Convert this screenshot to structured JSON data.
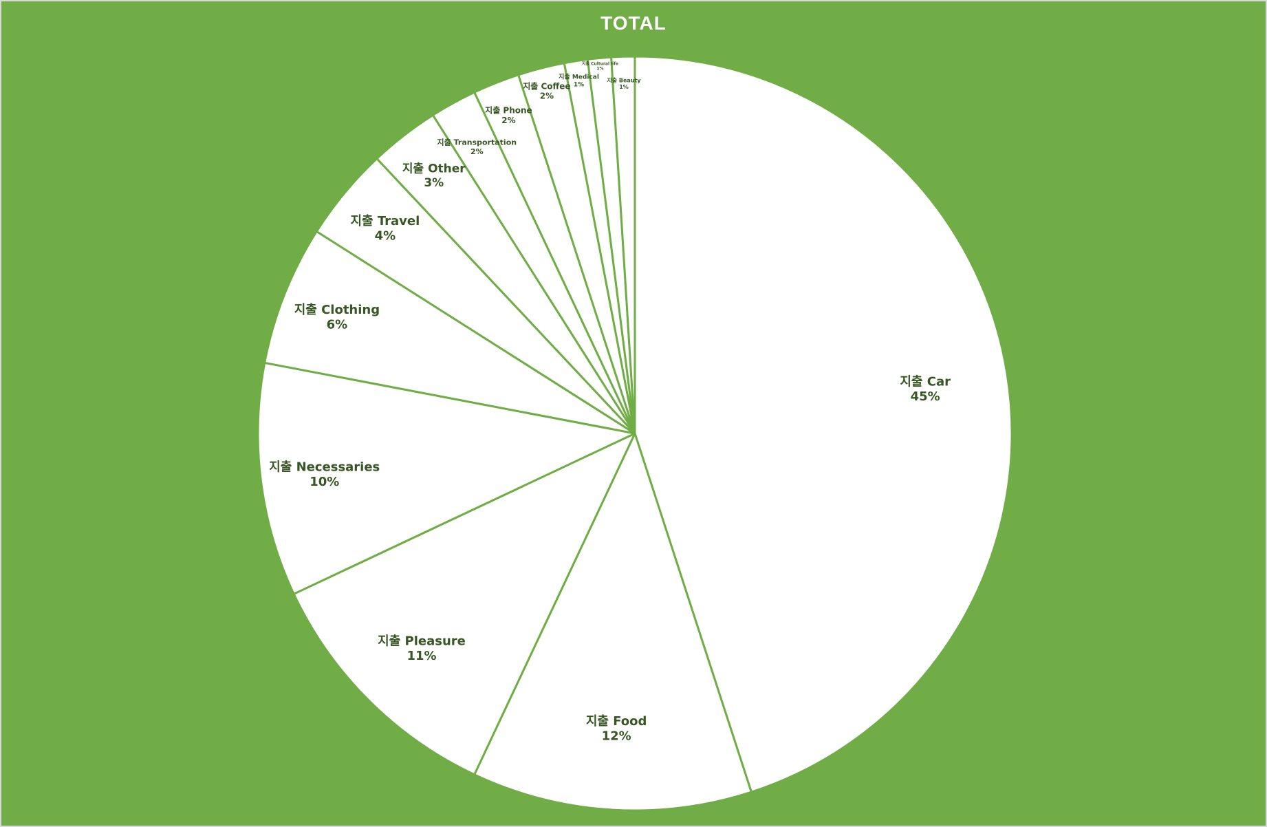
{
  "chart_data": {
    "type": "pie",
    "title": "TOTAL",
    "start_angle_deg": 0,
    "direction": "clockwise",
    "slices": [
      {
        "label": "지출 Car",
        "value": 45,
        "value_label": "45%"
      },
      {
        "label": "지출 Food",
        "value": 12,
        "value_label": "12%"
      },
      {
        "label": "지출 Pleasure",
        "value": 11,
        "value_label": "11%"
      },
      {
        "label": "지출 Necessaries",
        "value": 10,
        "value_label": "10%"
      },
      {
        "label": "지출 Clothing",
        "value": 6,
        "value_label": "6%"
      },
      {
        "label": "지출 Travel",
        "value": 4,
        "value_label": "4%"
      },
      {
        "label": "지출 Other",
        "value": 3,
        "value_label": "3%"
      },
      {
        "label": "지출 Transportation",
        "value": 2,
        "value_label": "2%"
      },
      {
        "label": "지출 Phone",
        "value": 2,
        "value_label": "2%"
      },
      {
        "label": "지출 Coffee",
        "value": 2,
        "value_label": "2%"
      },
      {
        "label": "지출 Medical",
        "value": 1,
        "value_label": "1%"
      },
      {
        "label": "지출 Cultural life",
        "value": 1,
        "value_label": "1%"
      },
      {
        "label": "지출 Beauty",
        "value": 1,
        "value_label": "1%"
      }
    ],
    "colors": {
      "background": "#70ad47",
      "slice_fill": "#ffffff",
      "slice_border": "#70ad47",
      "label": "#375623",
      "title": "#ffffff"
    },
    "legend": "none",
    "data_labels": "category-and-percent"
  }
}
